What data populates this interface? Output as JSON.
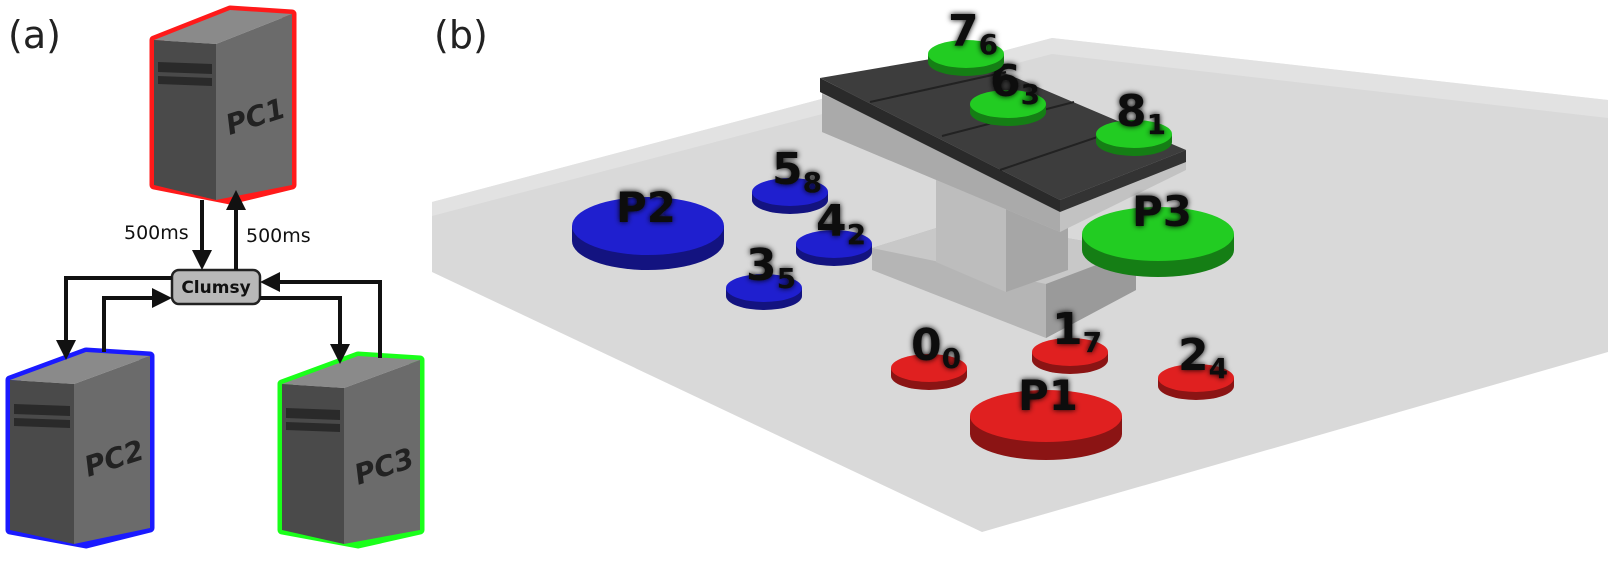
{
  "panel_a": {
    "label": "(a)",
    "computers": [
      {
        "name": "PC1",
        "border_color": "#ff1a1a"
      },
      {
        "name": "PC2",
        "border_color": "#1a1aff"
      },
      {
        "name": "PC3",
        "border_color": "#1aff1a"
      }
    ],
    "clumsy_label": "Clumsy",
    "latency_down": "500ms",
    "latency_up": "500ms"
  },
  "panel_b": {
    "label": "(b)",
    "players": [
      {
        "name": "P1",
        "color": "#e02020"
      },
      {
        "name": "P2",
        "color": "#1f1fcf"
      },
      {
        "name": "P3",
        "color": "#22cc22"
      }
    ],
    "targets": [
      {
        "num": "0",
        "sub": "0",
        "color": "#e02020"
      },
      {
        "num": "1",
        "sub": "7",
        "color": "#e02020"
      },
      {
        "num": "2",
        "sub": "4",
        "color": "#e02020"
      },
      {
        "num": "3",
        "sub": "5",
        "color": "#1f1fcf"
      },
      {
        "num": "4",
        "sub": "2",
        "color": "#1f1fcf"
      },
      {
        "num": "5",
        "sub": "8",
        "color": "#1f1fcf"
      },
      {
        "num": "6",
        "sub": "3",
        "color": "#22cc22"
      },
      {
        "num": "7",
        "sub": "6",
        "color": "#22cc22"
      },
      {
        "num": "8",
        "sub": "1",
        "color": "#22cc22"
      }
    ]
  }
}
